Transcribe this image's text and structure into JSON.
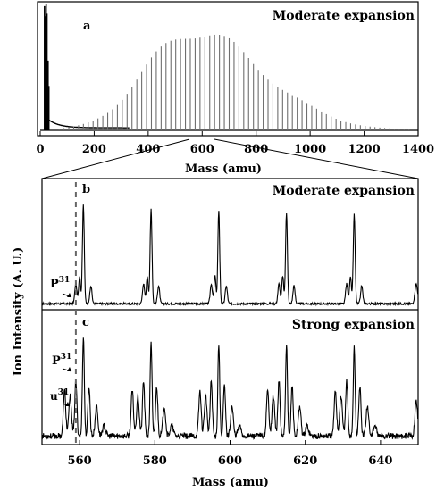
{
  "figure": {
    "ylabel": "Ion Intensity (A. U.)"
  },
  "chart_data": [
    {
      "type": "line",
      "panel": "a",
      "title": "Moderate expansion",
      "xlabel": "Mass (amu)",
      "xlim": [
        0,
        1400
      ],
      "xticks": [
        "0",
        "200",
        "400",
        "600",
        "800",
        "1000",
        "1200",
        "1400"
      ],
      "envelope": {
        "peak_mass": 560,
        "peak_height": 0.84,
        "spacing_amu": 18,
        "start_mass": 70,
        "end_mass": 1380
      },
      "low_mass_spike_mass": 22
    },
    {
      "type": "line",
      "panel": "b",
      "title": "Moderate expansion",
      "xlim": [
        550,
        650
      ],
      "peak_clusters": [
        {
          "main": 561,
          "height": 1.0
        },
        {
          "main": 579,
          "height": 0.96
        },
        {
          "main": 597,
          "height": 0.93
        },
        {
          "main": 615,
          "height": 0.92
        },
        {
          "main": 633,
          "height": 0.9
        }
      ],
      "annotations": [
        {
          "text": "P31",
          "mass": 559
        }
      ]
    },
    {
      "type": "line",
      "panel": "c",
      "title": "Strong expansion",
      "xlabel": "Mass (amu)",
      "xlim": [
        550,
        650
      ],
      "xticks": [
        "560",
        "580",
        "600",
        "620",
        "640"
      ],
      "peak_clusters": [
        {
          "main": 561,
          "height": 1.0
        },
        {
          "main": 579,
          "height": 0.95
        },
        {
          "main": 597,
          "height": 0.92
        },
        {
          "main": 615,
          "height": 0.9
        },
        {
          "main": 633,
          "height": 0.88
        }
      ],
      "annotations": [
        {
          "text": "P31",
          "mass": 559
        },
        {
          "text": "u31",
          "mass": 558
        }
      ]
    }
  ]
}
